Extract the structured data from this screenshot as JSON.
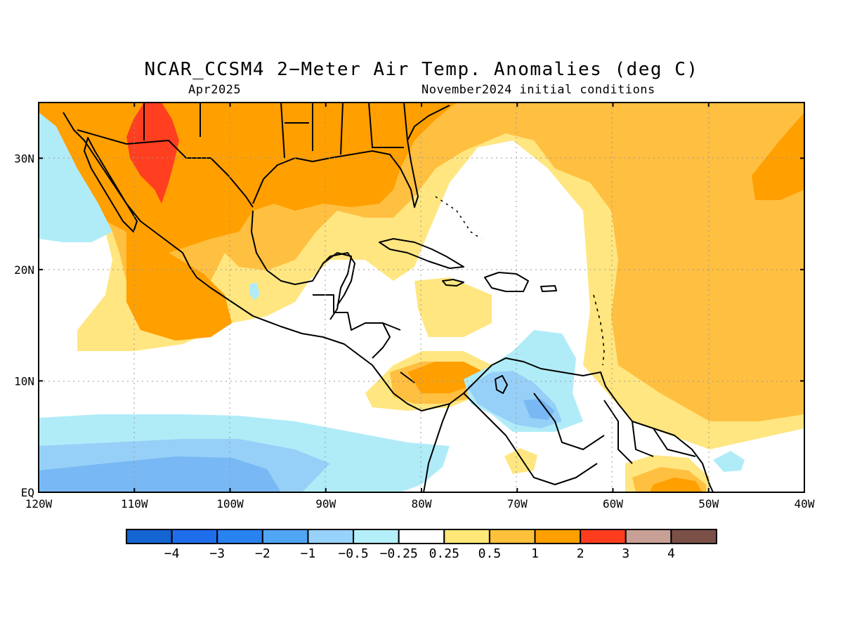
{
  "header": {
    "title": "NCAR_CCSM4 2−Meter Air Temp. Anomalies (deg C)",
    "valid_month": "Apr2025",
    "init_conditions": "November2024 initial conditions"
  },
  "map": {
    "projection": "equirectangular",
    "lon_range": [
      -120,
      -40
    ],
    "lat_range": [
      0,
      35
    ],
    "lat_ticks": [
      {
        "value": 30,
        "label": "30N"
      },
      {
        "value": 20,
        "label": "20N"
      },
      {
        "value": 10,
        "label": "10N"
      },
      {
        "value": 0,
        "label": "EQ"
      }
    ],
    "lon_ticks": [
      {
        "value": -120,
        "label": "120W"
      },
      {
        "value": -110,
        "label": "110W"
      },
      {
        "value": -100,
        "label": "100W"
      },
      {
        "value": -90,
        "label": "90W"
      },
      {
        "value": -80,
        "label": "80W"
      },
      {
        "value": -70,
        "label": "70W"
      },
      {
        "value": -60,
        "label": "60W"
      },
      {
        "value": -50,
        "label": "50W"
      },
      {
        "value": -40,
        "label": "40W"
      }
    ],
    "gridlines": "dotted",
    "fill_colors": {
      "background": "#ffffff",
      "neutral": "#ffffff",
      "light_warm": "#ffe680",
      "warm": "#ffbf40",
      "warmer": "#ff9f00",
      "hot": "#ff3f1f",
      "light_cool": "#b0ecf8",
      "cool": "#96d0f8",
      "cooler": "#78b8f4",
      "coolest": "#4a9cf0"
    }
  },
  "colorbar": {
    "colors": [
      "#1464d2",
      "#1e6eeb",
      "#2882f0",
      "#50a5f5",
      "#96d2fa",
      "#b4f0fa",
      "#ffffff",
      "#ffe878",
      "#ffc03c",
      "#ffa000",
      "#ff3c1e",
      "#c8a096",
      "#7a5047"
    ],
    "labels": [
      "−4",
      "−3",
      "−2",
      "−1",
      "−0.5",
      "−0.25",
      "0.25",
      "0.5",
      "1",
      "2",
      "3",
      "4"
    ]
  }
}
